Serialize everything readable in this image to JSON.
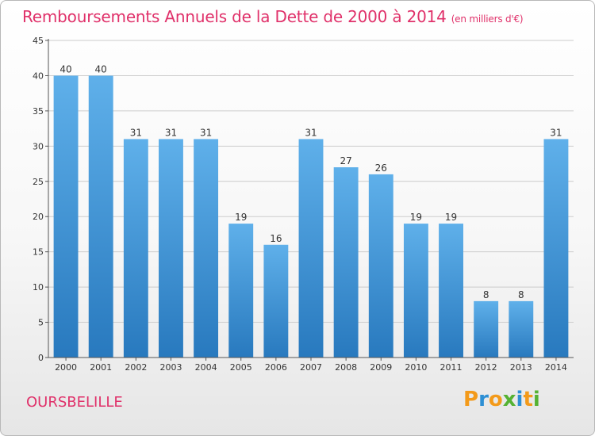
{
  "header": {
    "title": "Remboursements Annuels de la Dette de 2000 à 2014",
    "unit": "(en milliers d'€)"
  },
  "footer": {
    "city": "OURSBELILLE",
    "logo": "Proxiti",
    "logo_letters": [
      "P",
      "r",
      "o",
      "x",
      "i",
      "t",
      "i"
    ]
  },
  "colors": {
    "title": "#e0316a",
    "bar_top": "#5fb0ea",
    "bar_bottom": "#2879be",
    "grid": "#cccccc",
    "axis": "#555555",
    "logo_orange": "#f39a1a",
    "logo_blue": "#2d8fd4",
    "logo_green": "#55b233"
  },
  "chart_data": {
    "type": "bar",
    "title": "Remboursements Annuels de la Dette de 2000 à 2014",
    "subtitle": "(en milliers d'€)",
    "xlabel": "",
    "ylabel": "",
    "categories": [
      "2000",
      "2001",
      "2002",
      "2003",
      "2004",
      "2005",
      "2006",
      "2007",
      "2008",
      "2009",
      "2010",
      "2011",
      "2012",
      "2013",
      "2014"
    ],
    "values": [
      40,
      40,
      31,
      31,
      31,
      19,
      16,
      31,
      27,
      26,
      19,
      19,
      8,
      8,
      31
    ],
    "ylim": [
      0,
      45
    ],
    "yticks": [
      0,
      5,
      10,
      15,
      20,
      25,
      30,
      35,
      40,
      45
    ],
    "grid": true,
    "legend": "none"
  }
}
